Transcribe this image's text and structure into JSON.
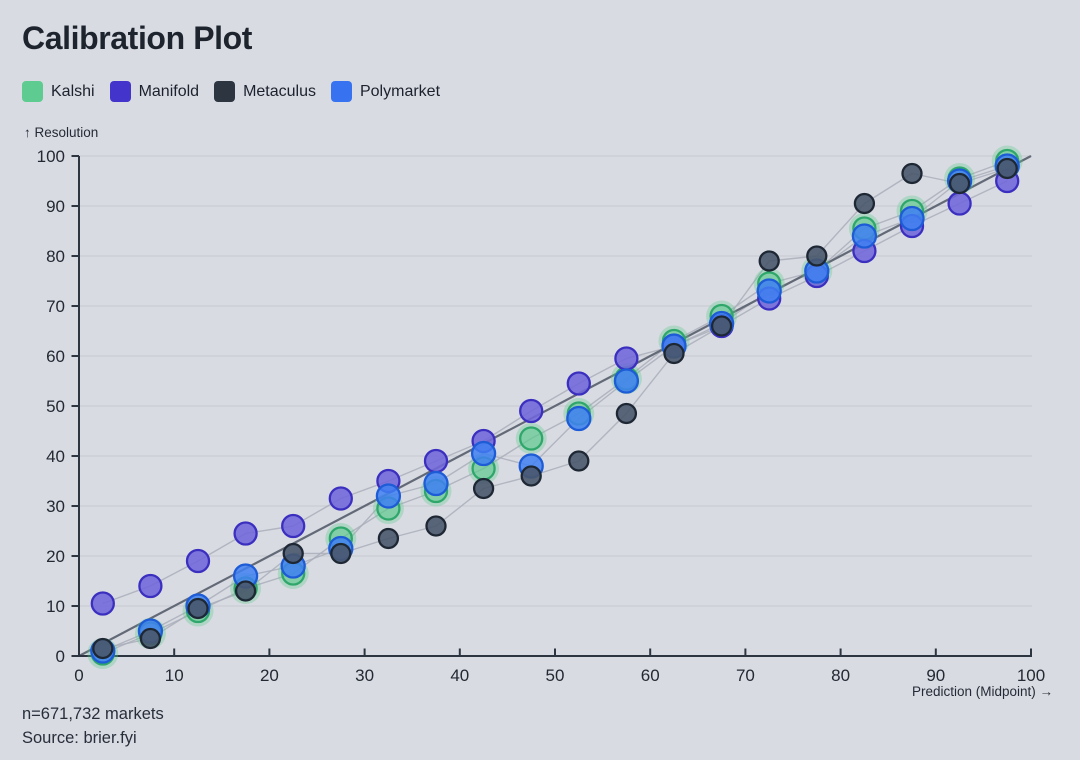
{
  "page": {
    "title": "Calibration Plot"
  },
  "legend": {
    "items": [
      {
        "label": "Kalshi",
        "color": "#5ecb90"
      },
      {
        "label": "Manifold",
        "color": "#4334cb"
      },
      {
        "label": "Metaculus",
        "color": "#2c3540"
      },
      {
        "label": "Polymarket",
        "color": "#3773f1"
      }
    ]
  },
  "footer": {
    "line1": "n=671,732 markets",
    "line2": "Source: brier.fyi"
  },
  "chart_data": {
    "type": "scatter",
    "title": "Calibration Plot",
    "xlabel": "Prediction (Midpoint) →",
    "ylabel": "↑ Resolution",
    "xlim": [
      0,
      100
    ],
    "ylim": [
      0,
      100
    ],
    "xticks": [
      0,
      10,
      20,
      30,
      40,
      50,
      60,
      70,
      80,
      90,
      100
    ],
    "yticks": [
      0,
      10,
      20,
      30,
      40,
      50,
      60,
      70,
      80,
      90,
      100
    ],
    "grid": "horizontal",
    "legend_position": "top-left",
    "diagonal_reference": true,
    "colors": {
      "background": "#d9dbe2",
      "grid": "#c7cad2",
      "axis": "#2c3540",
      "diagonal": "#5d6471",
      "series_line": "#a9aeba",
      "text": "#232933"
    },
    "x": [
      2.5,
      7.5,
      12.5,
      17.5,
      22.5,
      27.5,
      32.5,
      37.5,
      42.5,
      47.5,
      52.5,
      57.5,
      62.5,
      67.5,
      72.5,
      77.5,
      82.5,
      87.5,
      92.5,
      97.5
    ],
    "series": [
      {
        "name": "Kalshi",
        "color": "#56c98a",
        "stroke": "#2fa76b",
        "halo": true,
        "radius": 11,
        "fill_opacity": 0.5,
        "values": [
          0.5,
          4.5,
          9,
          13.5,
          16.5,
          23.5,
          29.5,
          33,
          37.5,
          43.5,
          48.5,
          55.5,
          63,
          68,
          74.5,
          77,
          85.5,
          89,
          95.5,
          99
        ]
      },
      {
        "name": "Manifold",
        "color": "#6f66d9",
        "stroke": "#3b2fc0",
        "halo": false,
        "radius": 11,
        "fill_opacity": 0.88,
        "values": [
          10.5,
          14,
          19,
          24.5,
          26,
          31.5,
          35,
          39,
          43,
          49,
          54.5,
          59.5,
          62,
          66,
          71.5,
          76,
          81,
          86,
          90.5,
          95
        ]
      },
      {
        "name": "Polymarket",
        "color": "#3f80f2",
        "stroke": "#1d5cd6",
        "halo": false,
        "radius": 11.5,
        "fill_opacity": 0.85,
        "values": [
          1,
          5,
          10,
          16,
          18,
          21.5,
          32,
          34.5,
          40.5,
          38,
          47.5,
          55,
          62,
          66.5,
          73,
          77,
          84,
          87.5,
          95,
          98
        ]
      },
      {
        "name": "Metaculus",
        "color": "#49566b",
        "stroke": "#1e2834",
        "halo": false,
        "radius": 9.5,
        "fill_opacity": 0.9,
        "values": [
          1.5,
          3.5,
          9.5,
          13,
          20.5,
          20.5,
          23.5,
          26,
          33.5,
          36,
          39,
          48.5,
          60.5,
          66,
          79,
          80,
          90.5,
          96.5,
          94.5,
          97.5
        ]
      }
    ],
    "annotations": [
      "n=671,732 markets",
      "Source: brier.fyi"
    ]
  }
}
